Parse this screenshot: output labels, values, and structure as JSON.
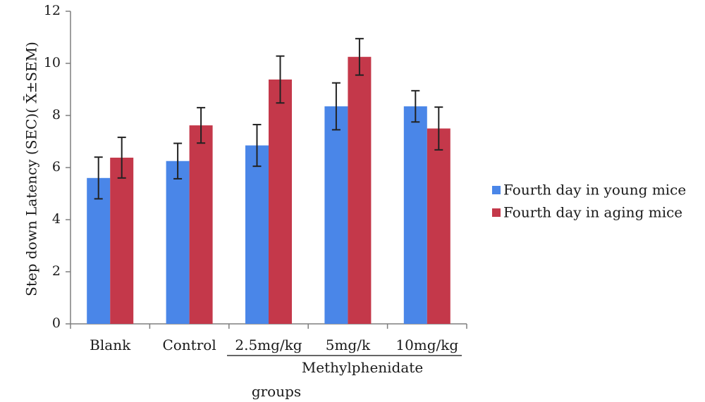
{
  "chart_data": {
    "type": "bar",
    "title": "",
    "xlabel": "groups",
    "ylabel": "Step down Latency (SEC)( X̄±SEM)",
    "ylim": [
      0,
      12
    ],
    "yticks": [
      0,
      2,
      4,
      6,
      8,
      10,
      12
    ],
    "categories": [
      "Blank",
      "Control",
      "2.5mg/kg",
      "5mg/k",
      "10mg/kg"
    ],
    "category_group_label": "Methylphenidate",
    "series": [
      {
        "name": "Fourth day in young mice",
        "color": "#4a86e8",
        "values": [
          5.6,
          6.25,
          6.85,
          8.35,
          8.35
        ],
        "errors": [
          0.8,
          0.68,
          0.8,
          0.9,
          0.6
        ]
      },
      {
        "name": "Fourth day in aging mice",
        "color": "#c4384a",
        "values": [
          6.38,
          7.62,
          9.38,
          10.25,
          7.5
        ],
        "errors": [
          0.78,
          0.68,
          0.9,
          0.7,
          0.82
        ]
      }
    ],
    "grid": false,
    "legend": "right"
  }
}
